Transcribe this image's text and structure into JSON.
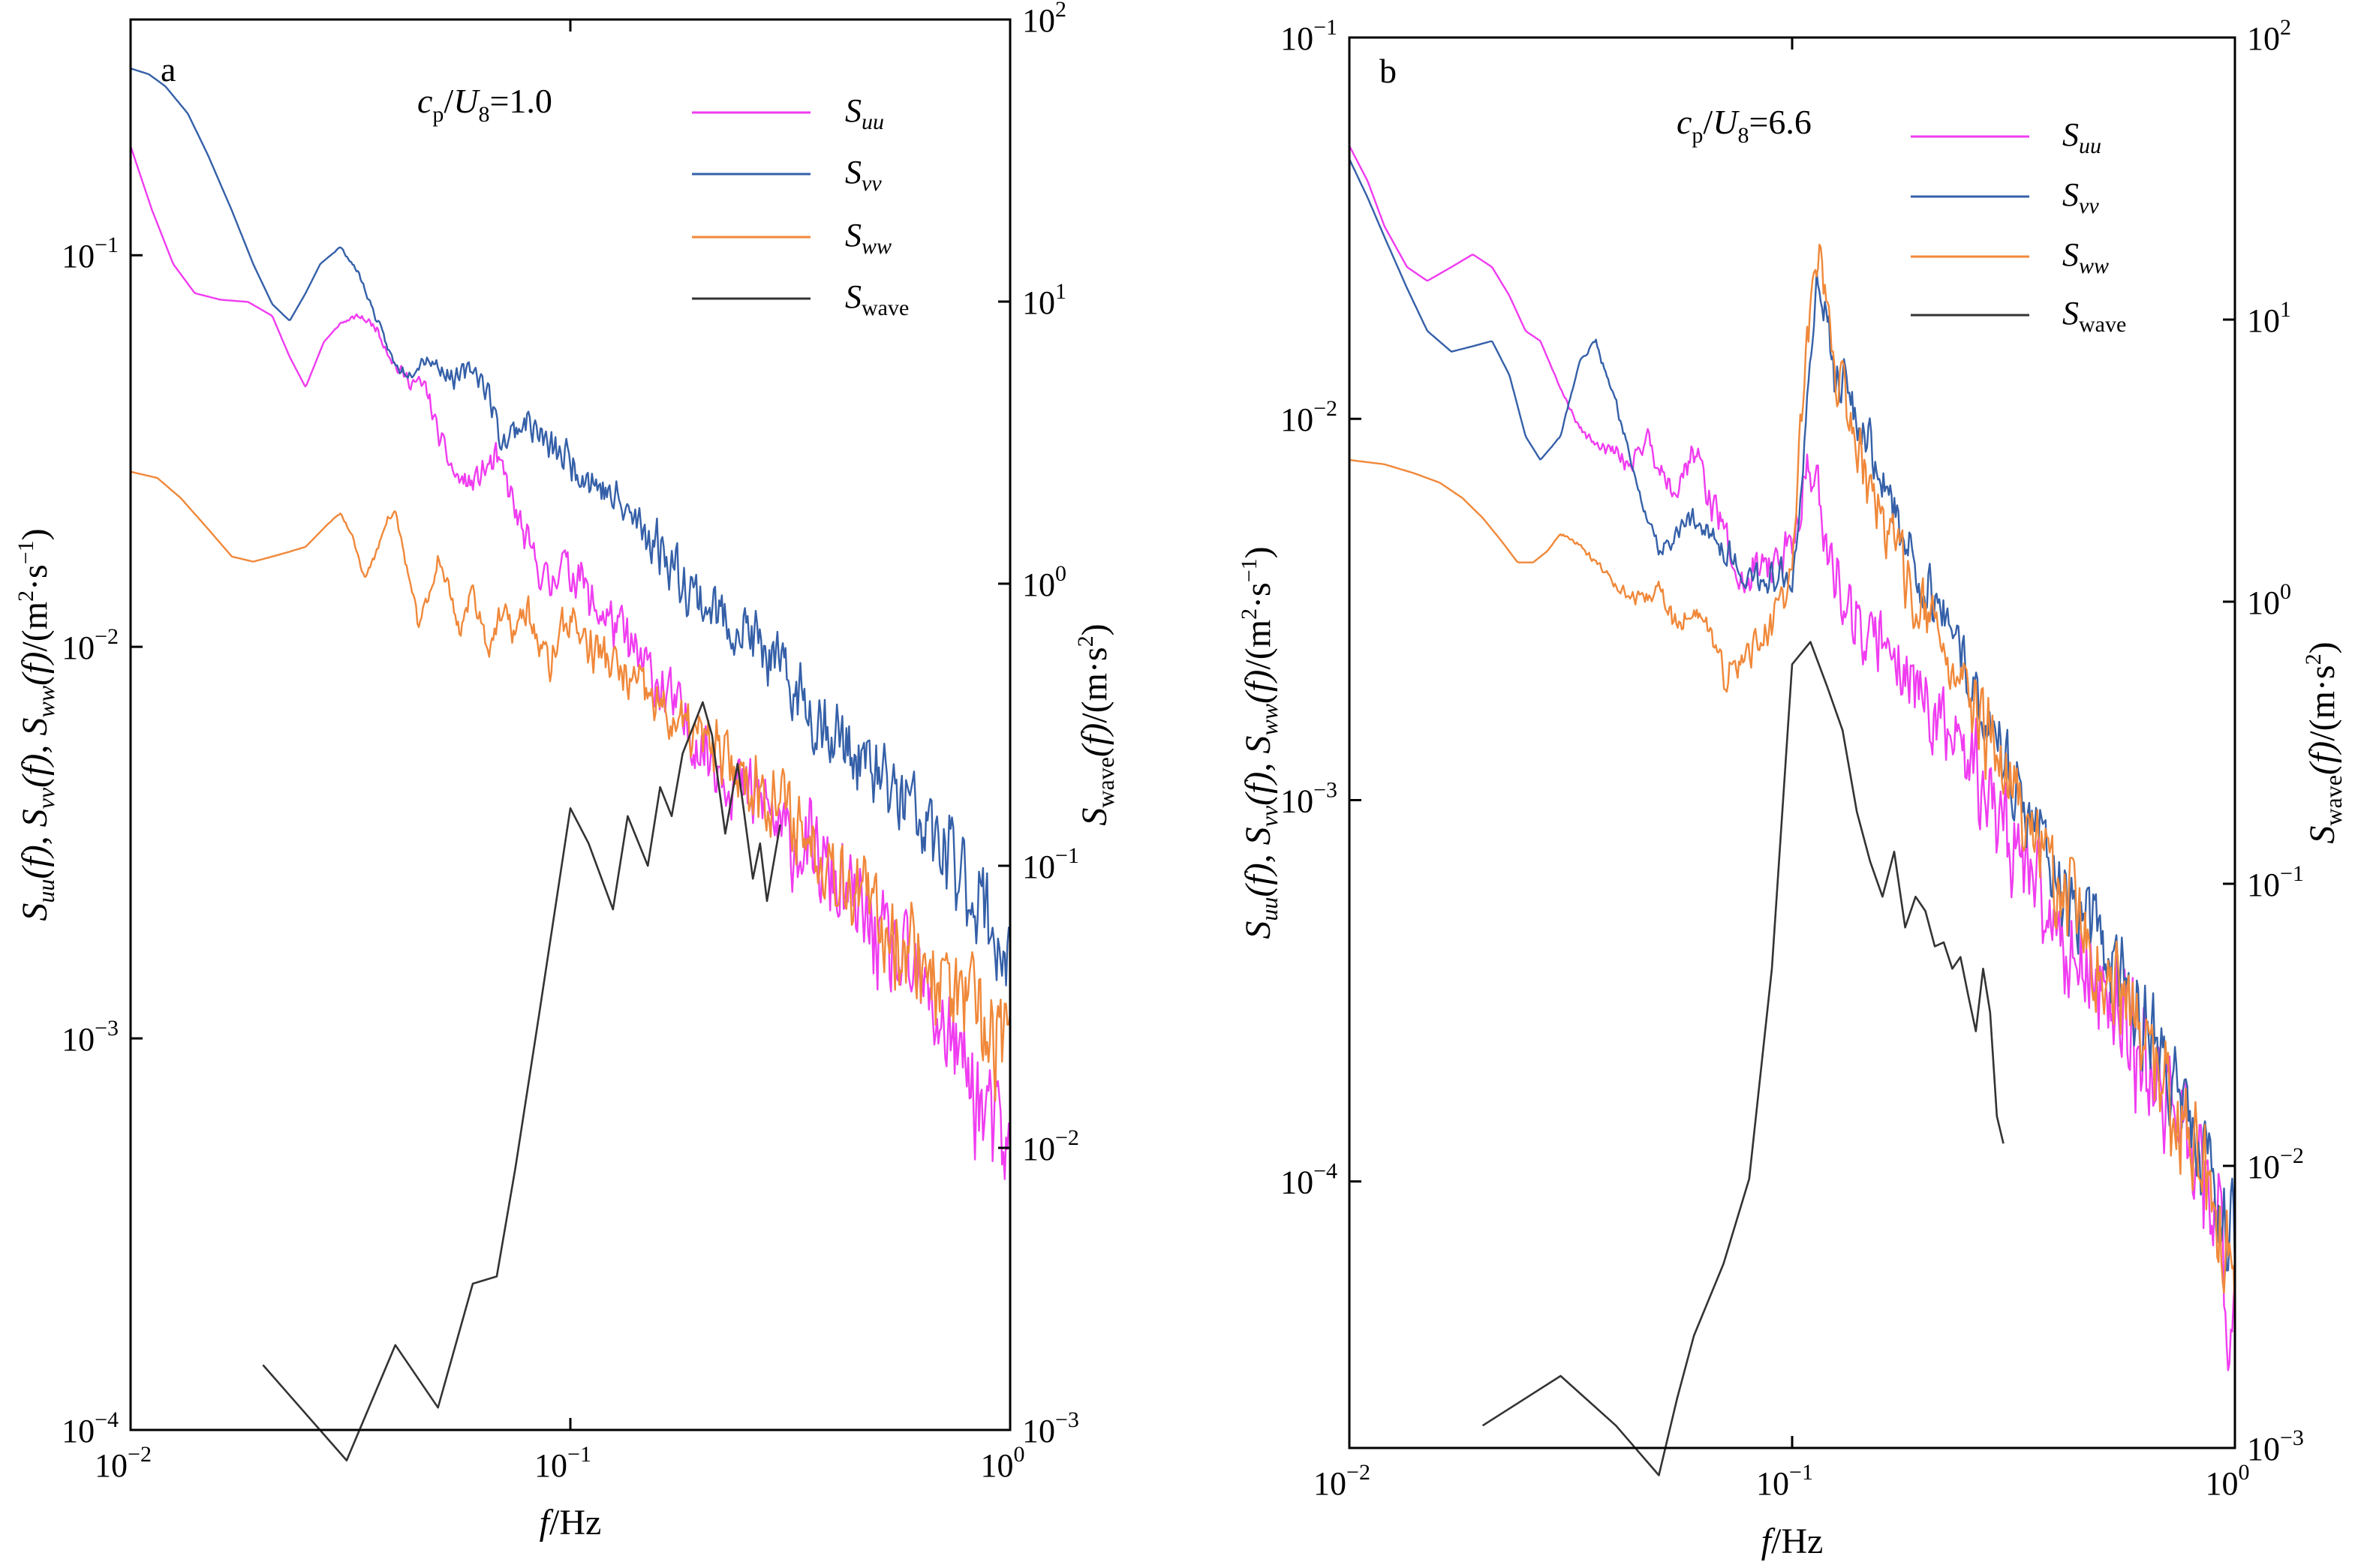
{
  "figure": {
    "x_axis_label_prefix": "f",
    "x_axis_label_suffix": "/Hz",
    "y_left_label": {
      "prefix": "S",
      "uu_sub": "uu",
      "vv_sub": "vv",
      "ww_sub": "ww",
      "f_arg": "(f)",
      "sep": ", ",
      "unit_open": "/(m",
      "unit_sup2": "2",
      "unit_mid": "·s",
      "unit_supm1": "−1",
      "unit_close": ")"
    },
    "y_right_label": {
      "prefix": "S",
      "sub": "wave",
      "f_arg": "(f)",
      "unit_open": "/(m·s",
      "unit_sup": "2",
      "unit_close": ")"
    },
    "legend": [
      {
        "main": "S",
        "sub": "uu",
        "color": "#f03cf0"
      },
      {
        "main": "S",
        "sub": "vv",
        "color": "#3560a8"
      },
      {
        "main": "S",
        "sub": "ww",
        "color": "#f0883a"
      },
      {
        "main": "S",
        "sub": "wave",
        "color": "#333333"
      }
    ],
    "colors": {
      "uu": "#f03cf0",
      "vv": "#3560a8",
      "ww": "#f0883a",
      "wave": "#333333"
    }
  },
  "chart_data": [
    {
      "type": "line",
      "panel_label": "a",
      "annotation": {
        "c": "c",
        "p": "p",
        "slash": "/",
        "U": "U",
        "eight": "8",
        "value": "=1.0"
      },
      "x_scale": "log",
      "xlim": [
        0.01,
        1
      ],
      "y_left_scale": "log",
      "y_left_lim": [
        0.0001,
        0.4
      ],
      "y_right_scale": "log",
      "y_right_lim": [
        0.001,
        100
      ],
      "x_ticks": [
        {
          "value": 0.01,
          "base": "10",
          "exp": "−2"
        },
        {
          "value": 0.1,
          "base": "10",
          "exp": "−1"
        },
        {
          "value": 1,
          "base": "10",
          "exp": "0"
        }
      ],
      "y_left_ticks": [
        {
          "value": 0.1,
          "base": "10",
          "exp": "−1"
        },
        {
          "value": 0.01,
          "base": "10",
          "exp": "−2"
        },
        {
          "value": 0.001,
          "base": "10",
          "exp": "−3"
        },
        {
          "value": 0.0001,
          "base": "10",
          "exp": "−4"
        }
      ],
      "y_right_ticks": [
        {
          "value": 100,
          "base": "10",
          "exp": "2"
        },
        {
          "value": 10,
          "base": "10",
          "exp": "1"
        },
        {
          "value": 1,
          "base": "10",
          "exp": "0"
        },
        {
          "value": 0.1,
          "base": "10",
          "exp": "−1"
        },
        {
          "value": 0.01,
          "base": "10",
          "exp": "−2"
        },
        {
          "value": 0.001,
          "base": "10",
          "exp": "−3"
        }
      ],
      "series": [
        {
          "name": "Suu",
          "key": "uu",
          "axis": "left",
          "noise": 0.2,
          "seed": 11,
          "x": [
            0.01,
            0.0112,
            0.0125,
            0.014,
            0.016,
            0.0185,
            0.021,
            0.023,
            0.025,
            0.0275,
            0.03,
            0.033,
            0.036,
            0.04,
            0.043,
            0.047,
            0.05,
            0.055,
            0.06,
            0.063,
            0.068,
            0.072,
            0.075,
            0.08,
            0.085,
            0.09,
            0.095,
            0.1,
            0.105,
            0.11,
            0.12,
            0.13,
            0.14,
            0.16,
            0.18,
            0.2,
            0.22,
            0.25,
            0.28,
            0.3,
            0.35,
            0.4,
            0.45,
            0.5,
            0.6,
            0.7,
            0.8,
            0.9,
            1.0
          ],
          "y": [
            0.19,
            0.13,
            0.095,
            0.08,
            0.077,
            0.076,
            0.07,
            0.055,
            0.046,
            0.06,
            0.067,
            0.07,
            0.066,
            0.052,
            0.048,
            0.046,
            0.035,
            0.027,
            0.026,
            0.028,
            0.03,
            0.026,
            0.022,
            0.018,
            0.016,
            0.014,
            0.017,
            0.015,
            0.016,
            0.013,
            0.012,
            0.011,
            0.0095,
            0.008,
            0.0065,
            0.0055,
            0.005,
            0.0042,
            0.004,
            0.0033,
            0.003,
            0.0025,
            0.0021,
            0.0018,
            0.0014,
            0.0011,
            0.0008,
            0.0006,
            0.0005
          ]
        },
        {
          "name": "Svv",
          "key": "vv",
          "axis": "left",
          "noise": 0.17,
          "seed": 23,
          "x": [
            0.01,
            0.011,
            0.012,
            0.0135,
            0.015,
            0.017,
            0.019,
            0.021,
            0.023,
            0.025,
            0.027,
            0.03,
            0.033,
            0.036,
            0.04,
            0.043,
            0.047,
            0.05,
            0.055,
            0.06,
            0.065,
            0.07,
            0.075,
            0.08,
            0.09,
            0.1,
            0.11,
            0.12,
            0.14,
            0.16,
            0.18,
            0.2,
            0.22,
            0.25,
            0.28,
            0.3,
            0.35,
            0.4,
            0.45,
            0.5,
            0.6,
            0.7,
            0.8,
            0.9,
            1.0
          ],
          "y": [
            0.3,
            0.29,
            0.27,
            0.23,
            0.18,
            0.13,
            0.095,
            0.075,
            0.068,
            0.08,
            0.095,
            0.105,
            0.09,
            0.07,
            0.052,
            0.05,
            0.055,
            0.052,
            0.048,
            0.052,
            0.045,
            0.033,
            0.036,
            0.038,
            0.032,
            0.03,
            0.027,
            0.025,
            0.021,
            0.018,
            0.015,
            0.013,
            0.012,
            0.011,
            0.0095,
            0.0085,
            0.007,
            0.006,
            0.0052,
            0.0046,
            0.0038,
            0.003,
            0.0025,
            0.002,
            0.0015
          ]
        },
        {
          "name": "Sww",
          "key": "ww",
          "axis": "left",
          "noise": 0.18,
          "seed": 37,
          "x": [
            0.01,
            0.0115,
            0.013,
            0.015,
            0.017,
            0.019,
            0.021,
            0.023,
            0.025,
            0.028,
            0.03,
            0.032,
            0.034,
            0.036,
            0.038,
            0.04,
            0.042,
            0.045,
            0.048,
            0.05,
            0.053,
            0.056,
            0.06,
            0.065,
            0.07,
            0.075,
            0.08,
            0.085,
            0.09,
            0.095,
            0.1,
            0.11,
            0.12,
            0.13,
            0.15,
            0.17,
            0.2,
            0.23,
            0.26,
            0.3,
            0.35,
            0.4,
            0.45,
            0.5,
            0.6,
            0.7,
            0.8,
            0.9,
            1.0
          ],
          "y": [
            0.028,
            0.027,
            0.024,
            0.02,
            0.017,
            0.0165,
            0.017,
            0.0175,
            0.018,
            0.0205,
            0.022,
            0.019,
            0.015,
            0.017,
            0.021,
            0.022,
            0.017,
            0.0115,
            0.0135,
            0.017,
            0.014,
            0.011,
            0.014,
            0.01,
            0.012,
            0.011,
            0.0125,
            0.01,
            0.009,
            0.011,
            0.012,
            0.01,
            0.0095,
            0.0085,
            0.0075,
            0.0065,
            0.0058,
            0.005,
            0.0045,
            0.004,
            0.0032,
            0.0028,
            0.0024,
            0.002,
            0.0017,
            0.0014,
            0.0012,
            0.001,
            0.0009
          ]
        },
        {
          "name": "Swave",
          "key": "wave",
          "axis": "right",
          "noise": 0,
          "seed": 0,
          "x": [
            0.02,
            0.031,
            0.04,
            0.05,
            0.06,
            0.068,
            0.075,
            0.085,
            0.1,
            0.11,
            0.125,
            0.135,
            0.15,
            0.16,
            0.17,
            0.18,
            0.2,
            0.21,
            0.225,
            0.24,
            0.26,
            0.27,
            0.28,
            0.3
          ],
          "y": [
            0.0017,
            0.00078,
            0.002,
            0.0012,
            0.0033,
            0.0035,
            0.0085,
            0.03,
            0.16,
            0.12,
            0.07,
            0.15,
            0.1,
            0.19,
            0.15,
            0.25,
            0.38,
            0.29,
            0.13,
            0.23,
            0.09,
            0.12,
            0.075,
            0.14
          ]
        }
      ]
    },
    {
      "type": "line",
      "panel_label": "b",
      "annotation": {
        "c": "c",
        "p": "p",
        "slash": "/",
        "U": "U",
        "eight": "8",
        "value": "=6.6"
      },
      "x_scale": "log",
      "xlim": [
        0.01,
        1
      ],
      "y_left_scale": "log",
      "y_left_lim": [
        2e-05,
        0.1
      ],
      "y_right_scale": "log",
      "y_right_lim": [
        0.001,
        100
      ],
      "x_ticks": [
        {
          "value": 0.01,
          "base": "10",
          "exp": "−2"
        },
        {
          "value": 0.1,
          "base": "10",
          "exp": "−1"
        },
        {
          "value": 1,
          "base": "10",
          "exp": "0"
        }
      ],
      "y_left_ticks": [
        {
          "value": 0.1,
          "base": "10",
          "exp": "−1"
        },
        {
          "value": 0.01,
          "base": "10",
          "exp": "−2"
        },
        {
          "value": 0.001,
          "base": "10",
          "exp": "−3"
        },
        {
          "value": 0.0001,
          "base": "10",
          "exp": "−4"
        }
      ],
      "y_right_ticks": [
        {
          "value": 100,
          "base": "10",
          "exp": "2"
        },
        {
          "value": 10,
          "base": "10",
          "exp": "1"
        },
        {
          "value": 1,
          "base": "10",
          "exp": "0"
        },
        {
          "value": 0.1,
          "base": "10",
          "exp": "−1"
        },
        {
          "value": 0.01,
          "base": "10",
          "exp": "−2"
        },
        {
          "value": 0.001,
          "base": "10",
          "exp": "−3"
        }
      ],
      "series": [
        {
          "name": "Suu",
          "key": "uu",
          "axis": "left",
          "noise": 0.24,
          "seed": 51,
          "x": [
            0.01,
            0.011,
            0.012,
            0.0135,
            0.015,
            0.017,
            0.019,
            0.021,
            0.023,
            0.025,
            0.027,
            0.03,
            0.033,
            0.036,
            0.04,
            0.043,
            0.047,
            0.05,
            0.055,
            0.06,
            0.065,
            0.07,
            0.075,
            0.08,
            0.085,
            0.09,
            0.095,
            0.1,
            0.105,
            0.11,
            0.115,
            0.12,
            0.13,
            0.14,
            0.15,
            0.16,
            0.18,
            0.2,
            0.22,
            0.25,
            0.3,
            0.35,
            0.4,
            0.5,
            0.6,
            0.7,
            0.8,
            0.9,
            1.0
          ],
          "y": [
            0.052,
            0.042,
            0.032,
            0.025,
            0.023,
            0.025,
            0.027,
            0.025,
            0.021,
            0.017,
            0.016,
            0.012,
            0.0095,
            0.0085,
            0.0082,
            0.0075,
            0.009,
            0.0075,
            0.0065,
            0.0085,
            0.0062,
            0.0052,
            0.0038,
            0.0037,
            0.0045,
            0.004,
            0.0042,
            0.0048,
            0.0065,
            0.0075,
            0.006,
            0.0045,
            0.0035,
            0.003,
            0.0025,
            0.0028,
            0.0022,
            0.0018,
            0.0015,
            0.0013,
            0.00085,
            0.0006,
            0.00045,
            0.00032,
            0.00023,
            0.00017,
            0.00012,
            8e-05,
            4e-05
          ]
        },
        {
          "name": "Svv",
          "key": "vv",
          "axis": "left",
          "noise": 0.18,
          "seed": 63,
          "x": [
            0.01,
            0.011,
            0.012,
            0.0135,
            0.015,
            0.017,
            0.019,
            0.021,
            0.023,
            0.025,
            0.027,
            0.03,
            0.033,
            0.036,
            0.04,
            0.043,
            0.047,
            0.05,
            0.055,
            0.06,
            0.065,
            0.07,
            0.075,
            0.08,
            0.09,
            0.1,
            0.105,
            0.11,
            0.115,
            0.12,
            0.125,
            0.13,
            0.14,
            0.15,
            0.16,
            0.18,
            0.2,
            0.22,
            0.25,
            0.3,
            0.35,
            0.4,
            0.5,
            0.6,
            0.7,
            0.8,
            0.9,
            1.0
          ],
          "y": [
            0.048,
            0.038,
            0.03,
            0.022,
            0.017,
            0.015,
            0.0155,
            0.016,
            0.013,
            0.009,
            0.0078,
            0.009,
            0.014,
            0.016,
            0.011,
            0.008,
            0.0055,
            0.0045,
            0.005,
            0.0055,
            0.0052,
            0.0045,
            0.0042,
            0.0038,
            0.0038,
            0.004,
            0.007,
            0.016,
            0.024,
            0.018,
            0.012,
            0.013,
            0.01,
            0.0085,
            0.007,
            0.005,
            0.0035,
            0.003,
            0.0022,
            0.0013,
            0.0009,
            0.00065,
            0.00042,
            0.00028,
            0.0002,
            0.00014,
            0.0001,
            7e-05
          ]
        },
        {
          "name": "Sww",
          "key": "ww",
          "axis": "left",
          "noise": 0.2,
          "seed": 77,
          "x": [
            0.01,
            0.012,
            0.014,
            0.016,
            0.018,
            0.02,
            0.022,
            0.024,
            0.026,
            0.028,
            0.03,
            0.033,
            0.036,
            0.04,
            0.043,
            0.046,
            0.05,
            0.055,
            0.06,
            0.065,
            0.07,
            0.075,
            0.08,
            0.09,
            0.1,
            0.105,
            0.11,
            0.115,
            0.12,
            0.125,
            0.13,
            0.14,
            0.15,
            0.16,
            0.18,
            0.2,
            0.22,
            0.25,
            0.3,
            0.35,
            0.4,
            0.5,
            0.6,
            0.7,
            0.8,
            0.9,
            1.0
          ],
          "y": [
            0.0078,
            0.0076,
            0.0072,
            0.0068,
            0.0062,
            0.0055,
            0.0048,
            0.0042,
            0.0042,
            0.0045,
            0.005,
            0.0047,
            0.0042,
            0.0037,
            0.0034,
            0.0033,
            0.0036,
            0.0028,
            0.0032,
            0.0028,
            0.0021,
            0.0022,
            0.0025,
            0.0028,
            0.004,
            0.01,
            0.02,
            0.028,
            0.02,
            0.013,
            0.012,
            0.0085,
            0.0065,
            0.0055,
            0.004,
            0.003,
            0.0025,
            0.0018,
            0.0012,
            0.0008,
            0.0006,
            0.00035,
            0.00025,
            0.00017,
            0.00012,
            8e-05,
            5e-05
          ]
        },
        {
          "name": "Swave",
          "key": "wave",
          "axis": "right",
          "noise": 0,
          "seed": 0,
          "x": [
            0.02,
            0.03,
            0.04,
            0.05,
            0.055,
            0.06,
            0.07,
            0.08,
            0.09,
            0.1,
            0.11,
            0.12,
            0.13,
            0.14,
            0.15,
            0.16,
            0.17,
            0.18,
            0.19,
            0.2,
            0.21,
            0.22,
            0.23,
            0.24,
            0.25,
            0.26,
            0.27,
            0.28,
            0.29,
            0.3
          ],
          "y": [
            0.0012,
            0.0018,
            0.0012,
            0.0008,
            0.0015,
            0.0025,
            0.0045,
            0.009,
            0.05,
            0.6,
            0.72,
            0.5,
            0.35,
            0.18,
            0.12,
            0.09,
            0.13,
            0.07,
            0.09,
            0.08,
            0.06,
            0.062,
            0.05,
            0.055,
            0.04,
            0.03,
            0.05,
            0.035,
            0.015,
            0.012
          ]
        }
      ]
    }
  ]
}
